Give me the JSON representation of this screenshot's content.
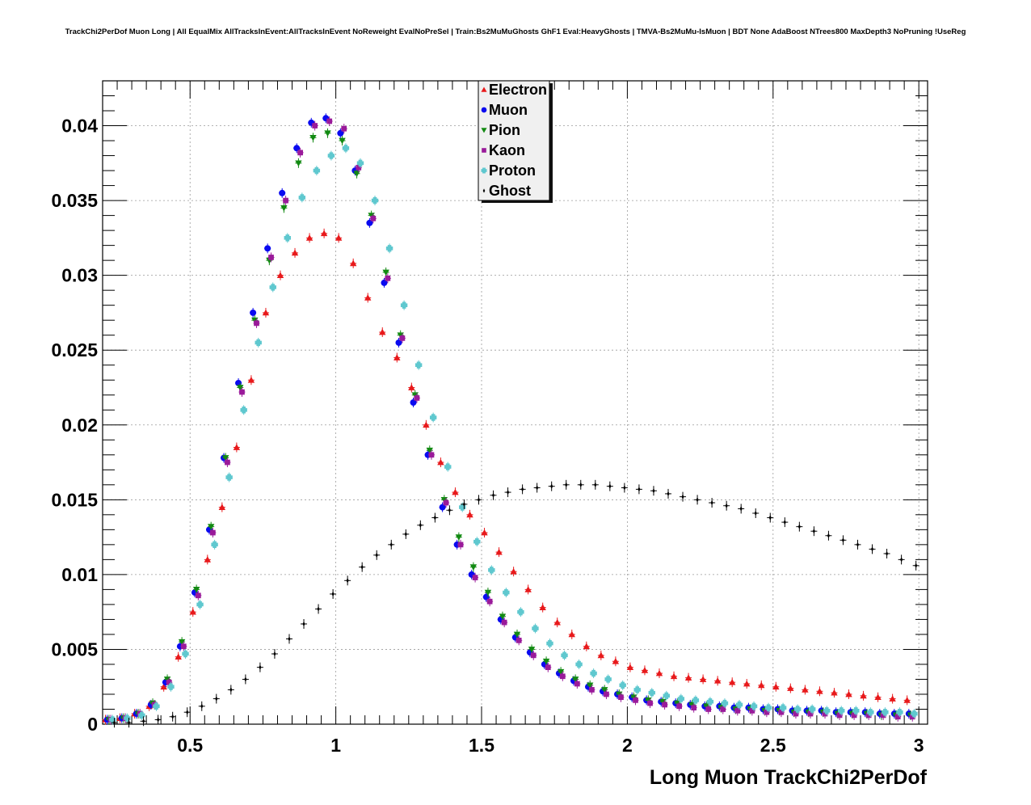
{
  "chart_data": {
    "type": "scatter",
    "title": "TrackChi2PerDof Muon Long | All EqualMix AllTracksInEvent:AllTracksInEvent NoReweight EvalNoPreSel | Train:Bs2MuMuGhosts GhF1 Eval:HeavyGhosts | TMVA-Bs2MuMu-IsMuon | BDT None AdaBoost NTrees800 MaxDepth3 NoPruning !UseReg",
    "xlabel": "Long Muon TrackChi2PerDof",
    "ylabel": "",
    "xlim": [
      0.2,
      3.03
    ],
    "ylim": [
      0,
      0.043
    ],
    "x_ticks": [
      0.5,
      1,
      1.5,
      2,
      2.5,
      3
    ],
    "x_tick_labels": [
      "0.5",
      "1",
      "1.5",
      "2",
      "2.5",
      "3"
    ],
    "y_ticks": [
      0,
      0.005,
      0.01,
      0.015,
      0.02,
      0.025,
      0.03,
      0.035,
      0.04
    ],
    "y_tick_labels": [
      "0",
      "0.005",
      "0.01",
      "0.015",
      "0.02",
      "0.025",
      "0.03",
      "0.035",
      "0.04"
    ],
    "grid": true,
    "legend_position": "top-center",
    "x": [
      0.225,
      0.275,
      0.325,
      0.375,
      0.425,
      0.475,
      0.525,
      0.575,
      0.625,
      0.675,
      0.725,
      0.775,
      0.825,
      0.875,
      0.925,
      0.975,
      1.025,
      1.075,
      1.125,
      1.175,
      1.225,
      1.275,
      1.325,
      1.375,
      1.425,
      1.475,
      1.525,
      1.575,
      1.625,
      1.675,
      1.725,
      1.775,
      1.825,
      1.875,
      1.925,
      1.975,
      2.025,
      2.075,
      2.125,
      2.175,
      2.225,
      2.275,
      2.325,
      2.375,
      2.425,
      2.475,
      2.525,
      2.575,
      2.625,
      2.675,
      2.725,
      2.775,
      2.825,
      2.875,
      2.925,
      2.975
    ],
    "series": [
      {
        "name": "Electron",
        "color": "#e8191b",
        "marker": "triangle-up",
        "values": [
          0.0003,
          0.0004,
          0.0007,
          0.0012,
          0.0025,
          0.0045,
          0.0075,
          0.011,
          0.0145,
          0.0185,
          0.023,
          0.0275,
          0.03,
          0.0315,
          0.0325,
          0.0328,
          0.0325,
          0.0308,
          0.0285,
          0.0262,
          0.0245,
          0.0225,
          0.02,
          0.0175,
          0.0155,
          0.014,
          0.0128,
          0.0115,
          0.0102,
          0.009,
          0.0078,
          0.0068,
          0.006,
          0.0052,
          0.0046,
          0.0042,
          0.0038,
          0.0036,
          0.0034,
          0.0032,
          0.0031,
          0.003,
          0.0029,
          0.0028,
          0.0027,
          0.0026,
          0.0025,
          0.0024,
          0.0023,
          0.0022,
          0.0021,
          0.002,
          0.0019,
          0.0018,
          0.0017,
          0.0016
        ]
      },
      {
        "name": "Muon",
        "color": "#0a0af0",
        "marker": "circle",
        "values": [
          0.0003,
          0.0004,
          0.0007,
          0.0013,
          0.0028,
          0.0052,
          0.0088,
          0.013,
          0.0178,
          0.0228,
          0.0275,
          0.0318,
          0.0355,
          0.0385,
          0.0402,
          0.0405,
          0.0395,
          0.037,
          0.0335,
          0.0295,
          0.0255,
          0.0215,
          0.018,
          0.0145,
          0.012,
          0.01,
          0.0085,
          0.007,
          0.0058,
          0.0048,
          0.004,
          0.0034,
          0.0029,
          0.0025,
          0.0022,
          0.002,
          0.0018,
          0.0016,
          0.0015,
          0.0014,
          0.0013,
          0.0012,
          0.0012,
          0.0011,
          0.0011,
          0.001,
          0.001,
          0.0009,
          0.0009,
          0.0009,
          0.0008,
          0.0008,
          0.0008,
          0.0007,
          0.0007,
          0.0007
        ]
      },
      {
        "name": "Pion",
        "color": "#128a12",
        "marker": "triangle-down",
        "values": [
          0.0003,
          0.0004,
          0.0007,
          0.0014,
          0.003,
          0.0055,
          0.009,
          0.0132,
          0.0178,
          0.0225,
          0.027,
          0.031,
          0.0345,
          0.0375,
          0.0392,
          0.0395,
          0.039,
          0.0368,
          0.034,
          0.0302,
          0.026,
          0.022,
          0.0183,
          0.015,
          0.0125,
          0.0105,
          0.0088,
          0.0072,
          0.006,
          0.005,
          0.0042,
          0.0035,
          0.003,
          0.0026,
          0.0023,
          0.002,
          0.0018,
          0.0016,
          0.0015,
          0.0014,
          0.0013,
          0.0012,
          0.0011,
          0.001,
          0.001,
          0.0009,
          0.0009,
          0.0008,
          0.0008,
          0.0008,
          0.0007,
          0.0007,
          0.0007,
          0.0006,
          0.0006,
          0.0006
        ]
      },
      {
        "name": "Kaon",
        "color": "#9a1a9a",
        "marker": "square",
        "values": [
          0.0003,
          0.0004,
          0.0007,
          0.0013,
          0.0028,
          0.0052,
          0.0086,
          0.0128,
          0.0175,
          0.0222,
          0.0268,
          0.0312,
          0.035,
          0.0382,
          0.04,
          0.0403,
          0.0398,
          0.0372,
          0.0338,
          0.0298,
          0.0258,
          0.0218,
          0.018,
          0.0148,
          0.012,
          0.0098,
          0.0082,
          0.0068,
          0.0056,
          0.0046,
          0.0038,
          0.0032,
          0.0027,
          0.0023,
          0.002,
          0.0018,
          0.0016,
          0.0014,
          0.0013,
          0.0012,
          0.0011,
          0.001,
          0.001,
          0.0009,
          0.0009,
          0.0008,
          0.0008,
          0.0007,
          0.0007,
          0.0007,
          0.0006,
          0.0006,
          0.0006,
          0.0006,
          0.0005,
          0.0005
        ]
      },
      {
        "name": "Proton",
        "color": "#5fc8cf",
        "marker": "cross",
        "values": [
          0.0003,
          0.0004,
          0.0006,
          0.0012,
          0.0025,
          0.0047,
          0.008,
          0.012,
          0.0165,
          0.021,
          0.0255,
          0.0292,
          0.0325,
          0.0352,
          0.037,
          0.038,
          0.0385,
          0.0375,
          0.035,
          0.0318,
          0.028,
          0.024,
          0.0205,
          0.0172,
          0.0145,
          0.0122,
          0.0103,
          0.0088,
          0.0075,
          0.0064,
          0.0054,
          0.0046,
          0.004,
          0.0034,
          0.003,
          0.0026,
          0.0023,
          0.0021,
          0.0019,
          0.0017,
          0.0016,
          0.0015,
          0.0014,
          0.0013,
          0.0012,
          0.0011,
          0.0011,
          0.001,
          0.001,
          0.0009,
          0.0009,
          0.0009,
          0.0008,
          0.0008,
          0.0008,
          0.0007
        ]
      },
      {
        "name": "Ghost",
        "color": "#000000",
        "marker": "star",
        "values": [
          0.0001,
          0.0001,
          0.0002,
          0.0003,
          0.0005,
          0.0008,
          0.0012,
          0.0017,
          0.0023,
          0.003,
          0.0038,
          0.0047,
          0.0057,
          0.0067,
          0.0077,
          0.0087,
          0.0096,
          0.0105,
          0.0113,
          0.012,
          0.0127,
          0.0133,
          0.0138,
          0.0143,
          0.0147,
          0.015,
          0.0153,
          0.0155,
          0.0157,
          0.0158,
          0.0159,
          0.016,
          0.016,
          0.016,
          0.0159,
          0.0158,
          0.0157,
          0.0156,
          0.0154,
          0.0152,
          0.015,
          0.0148,
          0.0146,
          0.0144,
          0.0141,
          0.0138,
          0.0135,
          0.0132,
          0.0129,
          0.0126,
          0.0123,
          0.012,
          0.0117,
          0.0114,
          0.011,
          0.0106
        ]
      }
    ]
  }
}
